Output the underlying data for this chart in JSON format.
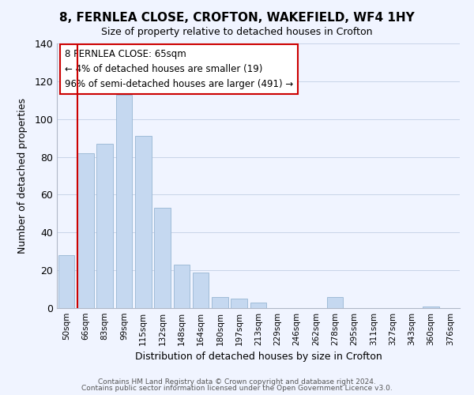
{
  "title": "8, FERNLEA CLOSE, CROFTON, WAKEFIELD, WF4 1HY",
  "subtitle": "Size of property relative to detached houses in Crofton",
  "xlabel": "Distribution of detached houses by size in Crofton",
  "ylabel": "Number of detached properties",
  "bar_labels": [
    "50sqm",
    "66sqm",
    "83sqm",
    "99sqm",
    "115sqm",
    "132sqm",
    "148sqm",
    "164sqm",
    "180sqm",
    "197sqm",
    "213sqm",
    "229sqm",
    "246sqm",
    "262sqm",
    "278sqm",
    "295sqm",
    "311sqm",
    "327sqm",
    "343sqm",
    "360sqm",
    "376sqm"
  ],
  "bar_values": [
    28,
    82,
    87,
    113,
    91,
    53,
    23,
    19,
    6,
    5,
    3,
    0,
    0,
    0,
    6,
    0,
    0,
    0,
    0,
    1,
    0
  ],
  "bar_color": "#c5d8f0",
  "bar_edge_color": "#a0bcd8",
  "highlight_color": "#cc0000",
  "annotation_text": "8 FERNLEA CLOSE: 65sqm\n← 4% of detached houses are smaller (19)\n96% of semi-detached houses are larger (491) →",
  "annotation_box_color": "#ffffff",
  "annotation_box_edge": "#cc0000",
  "ylim": [
    0,
    140
  ],
  "yticks": [
    0,
    20,
    40,
    60,
    80,
    100,
    120,
    140
  ],
  "footer_line1": "Contains HM Land Registry data © Crown copyright and database right 2024.",
  "footer_line2": "Contains public sector information licensed under the Open Government Licence v3.0.",
  "background_color": "#f0f4ff",
  "grid_color": "#c8d4e8"
}
